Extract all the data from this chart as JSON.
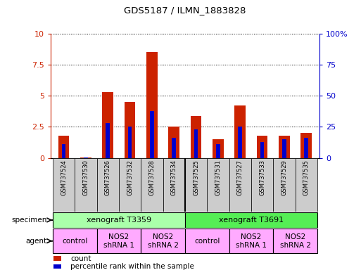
{
  "title": "GDS5187 / ILMN_1883828",
  "samples": [
    "GSM737524",
    "GSM737530",
    "GSM737526",
    "GSM737532",
    "GSM737528",
    "GSM737534",
    "GSM737525",
    "GSM737531",
    "GSM737527",
    "GSM737533",
    "GSM737529",
    "GSM737535"
  ],
  "count_values": [
    1.8,
    0.05,
    5.3,
    4.5,
    8.5,
    2.5,
    3.4,
    1.5,
    4.2,
    1.8,
    1.8,
    2.0
  ],
  "percentile_values": [
    11,
    0.5,
    28,
    25,
    38,
    16,
    23,
    11,
    25,
    13,
    15,
    16
  ],
  "ylim_left": [
    0,
    10
  ],
  "ylim_right": [
    0,
    100
  ],
  "yticks_left": [
    0,
    2.5,
    5.0,
    7.5,
    10
  ],
  "yticks_left_labels": [
    "0",
    "2.5",
    "5",
    "7.5",
    "10"
  ],
  "yticks_right": [
    0,
    25,
    50,
    75,
    100
  ],
  "yticks_right_labels": [
    "0",
    "25",
    "50",
    "75",
    "100%"
  ],
  "bar_color": "#cc2200",
  "percentile_color": "#0000cc",
  "bar_width": 0.5,
  "percentile_bar_width": 0.18,
  "specimen_color_1": "#bbffbb",
  "specimen_color_2": "#66dd66",
  "agent_color": "#ffaaff",
  "left_axis_color": "#cc2200",
  "right_axis_color": "#0000cc",
  "sample_bg_color": "#cccccc",
  "spec_data": [
    {
      "text": "xenograft T3359",
      "xmin": -0.5,
      "xmax": 5.5,
      "color": "#aaffaa"
    },
    {
      "text": "xenograft T3691",
      "xmin": 5.5,
      "xmax": 11.5,
      "color": "#55ee55"
    }
  ],
  "agent_data": [
    {
      "text": "control",
      "xmin": -0.5,
      "xmax": 1.5
    },
    {
      "text": "NOS2\nshRNA 1",
      "xmin": 1.5,
      "xmax": 3.5
    },
    {
      "text": "NOS2\nshRNA 2",
      "xmin": 3.5,
      "xmax": 5.5
    },
    {
      "text": "control",
      "xmin": 5.5,
      "xmax": 7.5
    },
    {
      "text": "NOS2\nshRNA 1",
      "xmin": 7.5,
      "xmax": 9.5
    },
    {
      "text": "NOS2\nshRNA 2",
      "xmin": 9.5,
      "xmax": 11.5
    }
  ]
}
